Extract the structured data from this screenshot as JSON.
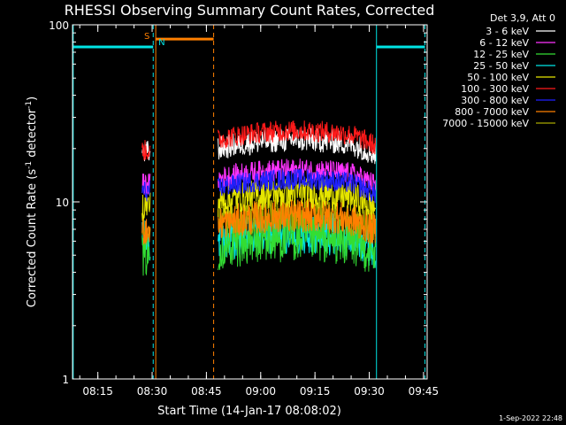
{
  "chart_data": {
    "type": "line",
    "title": "RHESSI Observing Summary Count Rates, Corrected",
    "xlabel": "Start Time (14-Jan-17 08:08:02)",
    "ylabel_main": "Corrected Count Rate (s",
    "ylabel_sup1": "-1",
    "ylabel_mid": " detector",
    "ylabel_sup2": "-1",
    "ylabel_end": ")",
    "y_scale": "log",
    "ylim": [
      1,
      100
    ],
    "xlim_minutes": [
      0,
      98
    ],
    "y_ticks": [
      {
        "value": 1,
        "label": "1"
      },
      {
        "value": 10,
        "label": "10"
      },
      {
        "value": 100,
        "label": "100"
      }
    ],
    "x_ticks": [
      {
        "minute": 7,
        "label": "08:15"
      },
      {
        "minute": 22,
        "label": "08:30"
      },
      {
        "minute": 37,
        "label": "08:45"
      },
      {
        "minute": 52,
        "label": "09:00"
      },
      {
        "minute": 67,
        "label": "09:15"
      },
      {
        "minute": 82,
        "label": "09:30"
      },
      {
        "minute": 97,
        "label": "09:45"
      }
    ],
    "legend_title": "Det 3,9, Att 0",
    "legend_position": "top-right",
    "series": [
      {
        "name": "3 - 6 keV",
        "color": "#ffffff",
        "seg1": 19.0,
        "seg2_base": 20.0
      },
      {
        "name": "6 - 12 keV",
        "color": "#ff33ff",
        "seg1": 12.5,
        "seg2_base": 13.5
      },
      {
        "name": "12 - 25 keV",
        "color": "#33dd33",
        "seg1": 5.0,
        "seg2_base": 5.5
      },
      {
        "name": "25 - 50 keV",
        "color": "#00e5e5",
        "seg1": 6.0,
        "seg2_base": 6.0
      },
      {
        "name": "50 - 100 keV",
        "color": "#e5e500",
        "seg1": 9.5,
        "seg2_base": 10.0
      },
      {
        "name": "100 - 300 keV",
        "color": "#ff1a1a",
        "seg1": 19.5,
        "seg2_base": 22.5
      },
      {
        "name": "300 - 800 keV",
        "color": "#2020ff",
        "seg1": 11.5,
        "seg2_base": 12.0
      },
      {
        "name": "800 - 7000 keV",
        "color": "#ff7f00",
        "seg1": 7.0,
        "seg2_base": 7.5
      },
      {
        "name": "7000 - 15000 keV",
        "color": "#a8a800",
        "seg1": 7.0,
        "seg2_base": 7.5
      }
    ],
    "segments_minutes": [
      [
        19.2,
        21.6
      ],
      [
        40.2,
        83.8
      ]
    ],
    "saa_markers": [
      {
        "label": "S",
        "minute": 21.5,
        "color": "#ff7f00"
      },
      {
        "label": "N",
        "minute": 23.0,
        "color": "#00e5e5"
      }
    ],
    "flag_bars": [
      {
        "color": "#00e5e5",
        "start": 0,
        "end": 22.3,
        "level": 75
      },
      {
        "color": "#ff7f00",
        "start": 23.0,
        "end": 39.0,
        "level": 83
      },
      {
        "color": "#00e5e5",
        "start": 84.0,
        "end": 97.4,
        "level": 75
      }
    ],
    "vlines": [
      {
        "minute": 22.3,
        "color": "#00e5e5",
        "dash": true
      },
      {
        "minute": 23.0,
        "color": "#ff7f00",
        "dash": false
      },
      {
        "minute": 39.0,
        "color": "#ff7f00",
        "dash": true
      },
      {
        "minute": 84.0,
        "color": "#00e5e5",
        "dash": false
      },
      {
        "minute": 97.4,
        "color": "#00e5e5",
        "dash": true
      },
      {
        "minute": 0.2,
        "color": "#00e5e5",
        "dash": false
      }
    ]
  },
  "footer": {
    "date": "1-Sep-2022 22:48"
  }
}
